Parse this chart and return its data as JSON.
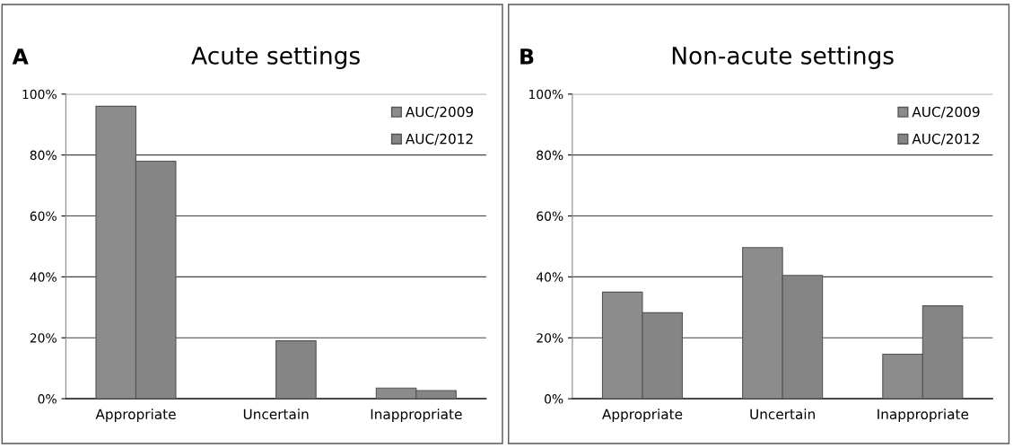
{
  "chart_data": [
    {
      "type": "bar",
      "title": "Acute settings",
      "annotations": [
        "A"
      ],
      "categories": [
        "Appropriate",
        "Uncertain",
        "Inappropriate"
      ],
      "series": [
        {
          "name": "AUC/2009",
          "color": "#8c8c8c",
          "values": [
            96,
            0,
            3.5
          ]
        },
        {
          "name": "AUC/2012",
          "color": "#858585",
          "values": [
            78,
            19,
            2.7
          ]
        }
      ],
      "ylim": [
        0,
        100
      ],
      "yticks": [
        {
          "value": 0,
          "label": "0%"
        },
        {
          "value": 20,
          "label": "20%"
        },
        {
          "value": 40,
          "label": "40%"
        },
        {
          "value": 60,
          "label": "60%"
        },
        {
          "value": 80,
          "label": "80%"
        },
        {
          "value": 100,
          "label": "100%"
        }
      ],
      "grid": "y",
      "legend": "top right"
    },
    {
      "type": "bar",
      "title": "Non-acute settings",
      "annotations": [
        "B"
      ],
      "categories": [
        "Appropriate",
        "Uncertain",
        "Inappropriate"
      ],
      "series": [
        {
          "name": "AUC/2009",
          "color": "#8c8c8c",
          "values": [
            35,
            49.6,
            14.6
          ]
        },
        {
          "name": "AUC/2012",
          "color": "#858585",
          "values": [
            28.2,
            40.5,
            30.5
          ]
        }
      ],
      "ylim": [
        0,
        100
      ],
      "yticks": [
        {
          "value": 0,
          "label": "0%"
        },
        {
          "value": 20,
          "label": "20%"
        },
        {
          "value": 40,
          "label": "40%"
        },
        {
          "value": 60,
          "label": "60%"
        },
        {
          "value": 80,
          "label": "80%"
        },
        {
          "value": 100,
          "label": "100%"
        }
      ],
      "grid": "y",
      "legend": "top right"
    }
  ]
}
